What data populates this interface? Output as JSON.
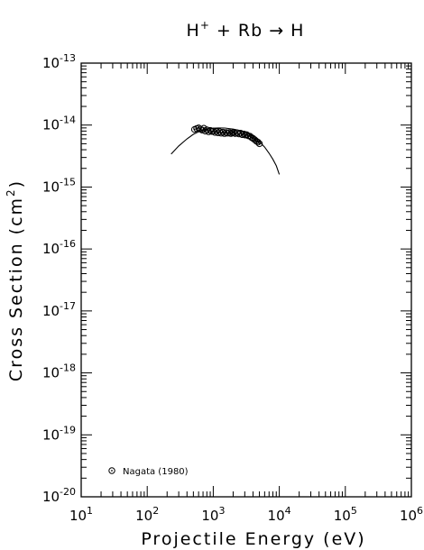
{
  "chart_data": {
    "type": "scatter",
    "title": {
      "base": "H",
      "sup": "+",
      "rest": " + Rb → H"
    },
    "xlabel": "Projectile Energy (eV)",
    "ylabel": {
      "base": "Cross Section (cm",
      "sup": "2",
      "end": ")"
    },
    "x_scale": "log",
    "y_scale": "log",
    "xlim": [
      10,
      1000000
    ],
    "ylim": [
      1e-20,
      1e-13
    ],
    "x_ticks": [
      {
        "base": "10",
        "exp": "1",
        "value": 10
      },
      {
        "base": "10",
        "exp": "2",
        "value": 100
      },
      {
        "base": "10",
        "exp": "3",
        "value": 1000
      },
      {
        "base": "10",
        "exp": "4",
        "value": 10000
      },
      {
        "base": "10",
        "exp": "5",
        "value": 100000
      },
      {
        "base": "10",
        "exp": "6",
        "value": 1000000
      }
    ],
    "y_ticks": [
      {
        "base": "10",
        "exp": "-20",
        "value": 1e-20
      },
      {
        "base": "10",
        "exp": "-19",
        "value": 1e-19
      },
      {
        "base": "10",
        "exp": "-18",
        "value": 1e-18
      },
      {
        "base": "10",
        "exp": "-17",
        "value": 1e-17
      },
      {
        "base": "10",
        "exp": "-16",
        "value": 1e-16
      },
      {
        "base": "10",
        "exp": "-15",
        "value": 1e-15
      },
      {
        "base": "10",
        "exp": "-14",
        "value": 1e-14
      },
      {
        "base": "10",
        "exp": "-13",
        "value": 1e-13
      }
    ],
    "grid": false,
    "legend_position": "bottom-left",
    "series": [
      {
        "name": "Nagata (1980)",
        "kind": "scatter",
        "marker": "circle-dot",
        "points": [
          [
            520,
            8.5e-15
          ],
          [
            560,
            8.8e-15
          ],
          [
            600,
            9e-15
          ],
          [
            640,
            8.6e-15
          ],
          [
            680,
            8.3e-15
          ],
          [
            720,
            8.9e-15
          ],
          [
            760,
            8e-15
          ],
          [
            800,
            8.4e-15
          ],
          [
            850,
            7.8e-15
          ],
          [
            900,
            8.2e-15
          ],
          [
            950,
            7.9e-15
          ],
          [
            1000,
            8e-15
          ],
          [
            1060,
            7.6e-15
          ],
          [
            1120,
            7.9e-15
          ],
          [
            1180,
            7.5e-15
          ],
          [
            1250,
            7.8e-15
          ],
          [
            1320,
            7.4e-15
          ],
          [
            1400,
            7.7e-15
          ],
          [
            1480,
            7.3e-15
          ],
          [
            1560,
            7.6e-15
          ],
          [
            1650,
            7.4e-15
          ],
          [
            1750,
            7.6e-15
          ],
          [
            1850,
            7.3e-15
          ],
          [
            1950,
            7.5e-15
          ],
          [
            2050,
            7.6e-15
          ],
          [
            2150,
            7.3e-15
          ],
          [
            2300,
            7.5e-15
          ],
          [
            2450,
            7.2e-15
          ],
          [
            2600,
            7.4e-15
          ],
          [
            2750,
            7e-15
          ],
          [
            2900,
            7.2e-15
          ],
          [
            3050,
            6.9e-15
          ],
          [
            3200,
            7e-15
          ],
          [
            3400,
            6.7e-15
          ],
          [
            3600,
            6.6e-15
          ],
          [
            3800,
            6.3e-15
          ],
          [
            4000,
            6.1e-15
          ],
          [
            4250,
            5.8e-15
          ],
          [
            4500,
            5.5e-15
          ],
          [
            4750,
            5.3e-15
          ],
          [
            5000,
            5e-15
          ]
        ]
      },
      {
        "name": "",
        "kind": "line",
        "points": [
          [
            230,
            3.4e-15
          ],
          [
            300,
            4.6e-15
          ],
          [
            400,
            6e-15
          ],
          [
            500,
            7.1e-15
          ],
          [
            600,
            7.8e-15
          ],
          [
            700,
            8.3e-15
          ],
          [
            800,
            8.6e-15
          ],
          [
            1000,
            8.9e-15
          ],
          [
            1200,
            9e-15
          ],
          [
            1500,
            8.95e-15
          ],
          [
            2000,
            8.6e-15
          ],
          [
            2500,
            8.2e-15
          ],
          [
            3000,
            7.7e-15
          ],
          [
            3500,
            7.1e-15
          ],
          [
            4000,
            6.5e-15
          ],
          [
            5000,
            5.4e-15
          ],
          [
            6000,
            4.4e-15
          ],
          [
            7000,
            3.5e-15
          ],
          [
            8000,
            2.8e-15
          ],
          [
            9000,
            2.2e-15
          ],
          [
            10000,
            1.6e-15
          ]
        ]
      }
    ]
  }
}
